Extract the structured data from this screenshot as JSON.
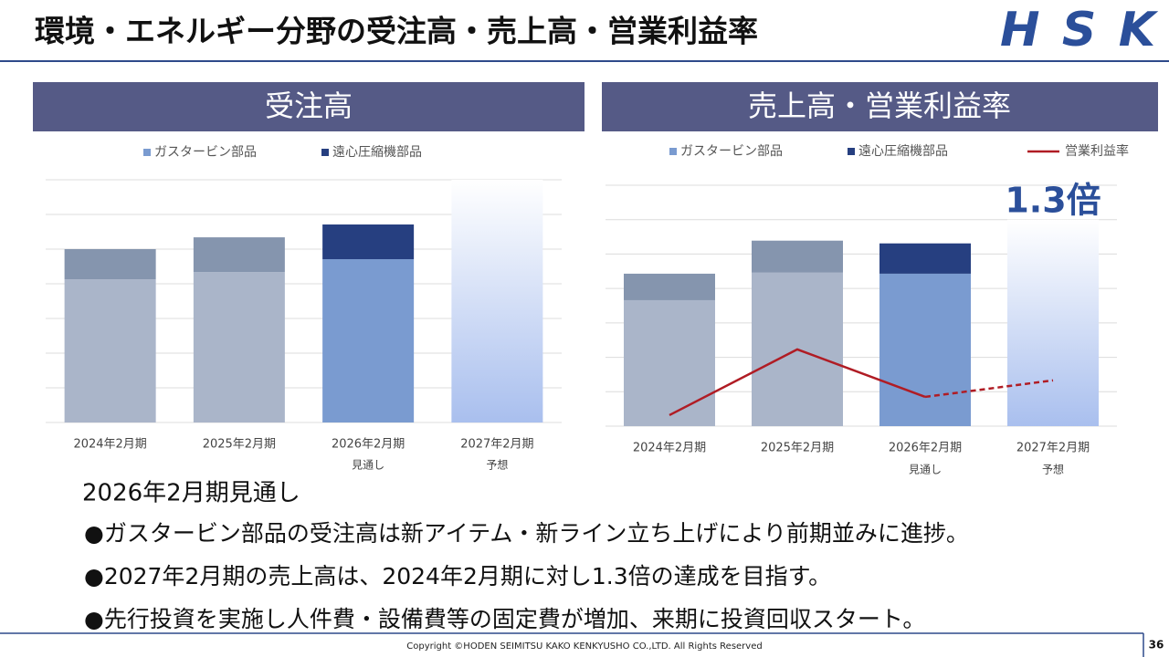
{
  "header": {
    "title": "環境・エネルギー分野の受注高・売上高・営業利益率",
    "logo": "HSK"
  },
  "chart_data": [
    {
      "type": "bar",
      "stacked": true,
      "title": "受注高",
      "categories": [
        "2024年2月期",
        "2025年2月期",
        "2026年2月期",
        "2027年2月期"
      ],
      "category_notes": [
        null,
        null,
        "見通し",
        "予想"
      ],
      "series": [
        {
          "name": "ガスタービン部品",
          "color": "#7a9bd0",
          "point_colors": [
            "#aab5c9",
            "#aab5c9",
            "#7a9bd0",
            null
          ],
          "values": [
            4.13,
            4.34,
            4.71,
            null
          ]
        },
        {
          "name": "遠心圧縮機部品",
          "color": "#263f80",
          "point_colors": [
            "#8595ae",
            "#8595ae",
            "#263f80",
            null
          ],
          "values": [
            0.87,
            1.0,
            1.0,
            null
          ]
        }
      ],
      "forecast_values": [
        null,
        null,
        null,
        7.0
      ],
      "forecast_color": "#a9bfee",
      "ylim": [
        0,
        7
      ],
      "grid": true
    },
    {
      "type": "bar",
      "stacked": true,
      "title": "売上高・営業利益率",
      "categories": [
        "2024年2月期",
        "2025年2月期",
        "2026年2月期",
        "2027年2月期"
      ],
      "category_notes": [
        null,
        null,
        "見通し",
        "予想"
      ],
      "series": [
        {
          "name": "ガスタービン部品",
          "color": "#7a9bd0",
          "point_colors": [
            "#aab5c9",
            "#aab5c9",
            "#7a9bd0",
            null
          ],
          "values": [
            3.66,
            4.46,
            4.43,
            null
          ]
        },
        {
          "name": "遠心圧縮機部品",
          "color": "#263f80",
          "point_colors": [
            "#8595ae",
            "#8595ae",
            "#263f80",
            null
          ],
          "values": [
            0.77,
            0.93,
            0.88,
            null
          ]
        },
        {
          "name": "営業利益率",
          "type": "line",
          "axis": "y2",
          "color": "#b01c24",
          "dashed_from": 2,
          "values": [
            0.32,
            2.23,
            0.85,
            1.33
          ]
        }
      ],
      "forecast_values": [
        null,
        null,
        null,
        6.0
      ],
      "forecast_color": "#a9bfee",
      "annotation": "1.3倍",
      "ylim": [
        0,
        7
      ],
      "y2lim": [
        0,
        7
      ],
      "grid": true
    }
  ],
  "body": {
    "heading": "2026年2月期見通し",
    "bullets": [
      "●ガスタービン部品の受注高は新アイテム・新ライン立ち上げにより前期並みに進捗。",
      "●2027年2月期の売上高は、2024年2月期に対し1.3倍の達成を目指す。",
      "●先行投資を実施し人件費・設備費等の固定費が増加、来期に投資回収スタート。"
    ]
  },
  "footer": {
    "copyright": "Copyright ©HODEN SEIMITSU KAKO KENKYUSHO CO.,LTD. All Rights Reserved",
    "page": "36"
  }
}
